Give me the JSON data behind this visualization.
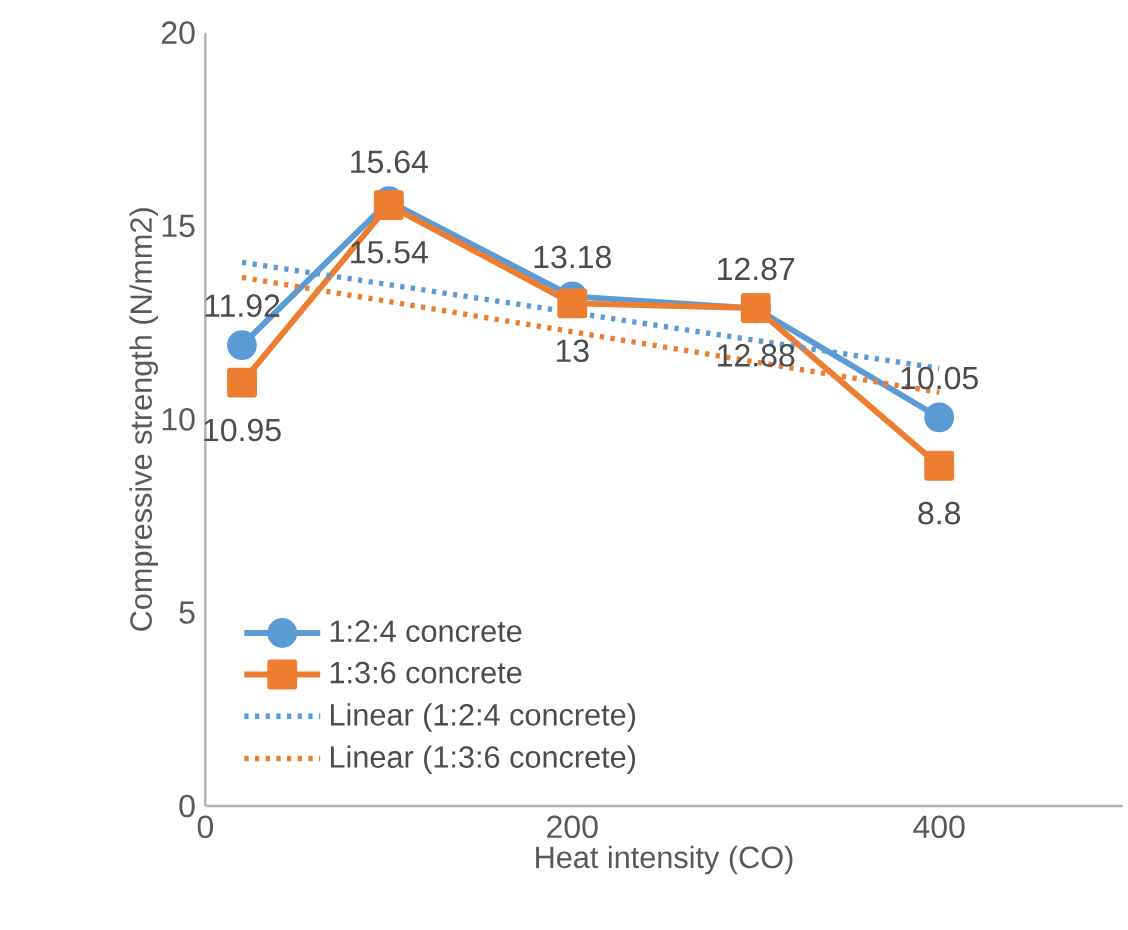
{
  "chart_data": {
    "type": "line",
    "xlabel": "Heat intensity (CO)",
    "ylabel": "Compressive strength (N/mm2)",
    "xlim": [
      0,
      500
    ],
    "xticks": [
      0,
      200,
      400
    ],
    "ylim": [
      0,
      20
    ],
    "yticks": [
      0,
      5,
      10,
      15,
      20
    ],
    "legend": "bottom left",
    "series": [
      {
        "name": "1:2:4 concrete",
        "color": "#5b9bd5",
        "marker": "circle",
        "line_style": "solid",
        "x": [
          20,
          100,
          200,
          300,
          400
        ],
        "values": [
          11.92,
          15.64,
          13.18,
          12.87,
          10.05
        ],
        "value_labels": [
          "11.92",
          "15.64",
          "13.18",
          "12.87",
          "10.05"
        ]
      },
      {
        "name": "1:3:6 concrete",
        "color": "#ed7d31",
        "marker": "square",
        "line_style": "solid",
        "x": [
          20,
          100,
          200,
          300,
          400
        ],
        "values": [
          10.95,
          15.54,
          13,
          12.88,
          8.8
        ],
        "value_labels": [
          "10.95",
          "15.54",
          "13",
          "12.88",
          "8.8"
        ]
      },
      {
        "name": "Linear (1:2:4 concrete)",
        "color": "#5b9bd5",
        "marker": "none",
        "line_style": "dotted",
        "x": [
          20,
          400
        ],
        "values": [
          14.06,
          11.32
        ]
      },
      {
        "name": "Linear (1:3:6 concrete)",
        "color": "#ed7d31",
        "marker": "none",
        "line_style": "dotted",
        "x": [
          20,
          400
        ],
        "values": [
          13.67,
          10.7
        ]
      }
    ]
  }
}
